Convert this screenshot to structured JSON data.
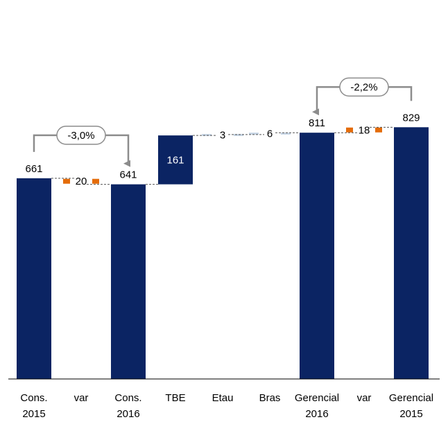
{
  "chart_data": {
    "type": "bar",
    "subtype": "waterfall",
    "categories": [
      [
        "Cons.",
        "2015"
      ],
      [
        "var"
      ],
      [
        "Cons.",
        "2016"
      ],
      [
        "TBE"
      ],
      [
        "Etau"
      ],
      [
        "Bras"
      ],
      [
        "Gerencial",
        "2016"
      ],
      [
        "var"
      ],
      [
        "Gerencial",
        "2015"
      ]
    ],
    "steps": [
      {
        "kind": "total",
        "value": 661,
        "label": "661"
      },
      {
        "kind": "decrease",
        "value": 20,
        "label": "20"
      },
      {
        "kind": "total",
        "value": 641,
        "label": "641"
      },
      {
        "kind": "increase",
        "value": 161,
        "label": "161"
      },
      {
        "kind": "increase",
        "value": 3,
        "label": "3"
      },
      {
        "kind": "increase",
        "value": 6,
        "label": "6"
      },
      {
        "kind": "total",
        "value": 811,
        "label": "811"
      },
      {
        "kind": "increase",
        "value": 18,
        "label": "18"
      },
      {
        "kind": "total",
        "value": 829,
        "label": "829"
      }
    ],
    "ylim": [
      0,
      900
    ],
    "annotations": [
      {
        "text": "-3,0%",
        "from": 0,
        "to": 2
      },
      {
        "text": "-2,2%",
        "from": 8,
        "to": 6
      }
    ],
    "grid": false,
    "legend": "none",
    "colors": {
      "total": "#0b2463",
      "variation": "#e46c0a",
      "small": "#c9d7e6",
      "connector": "#555555",
      "arrow": "#8c8c8c"
    }
  }
}
